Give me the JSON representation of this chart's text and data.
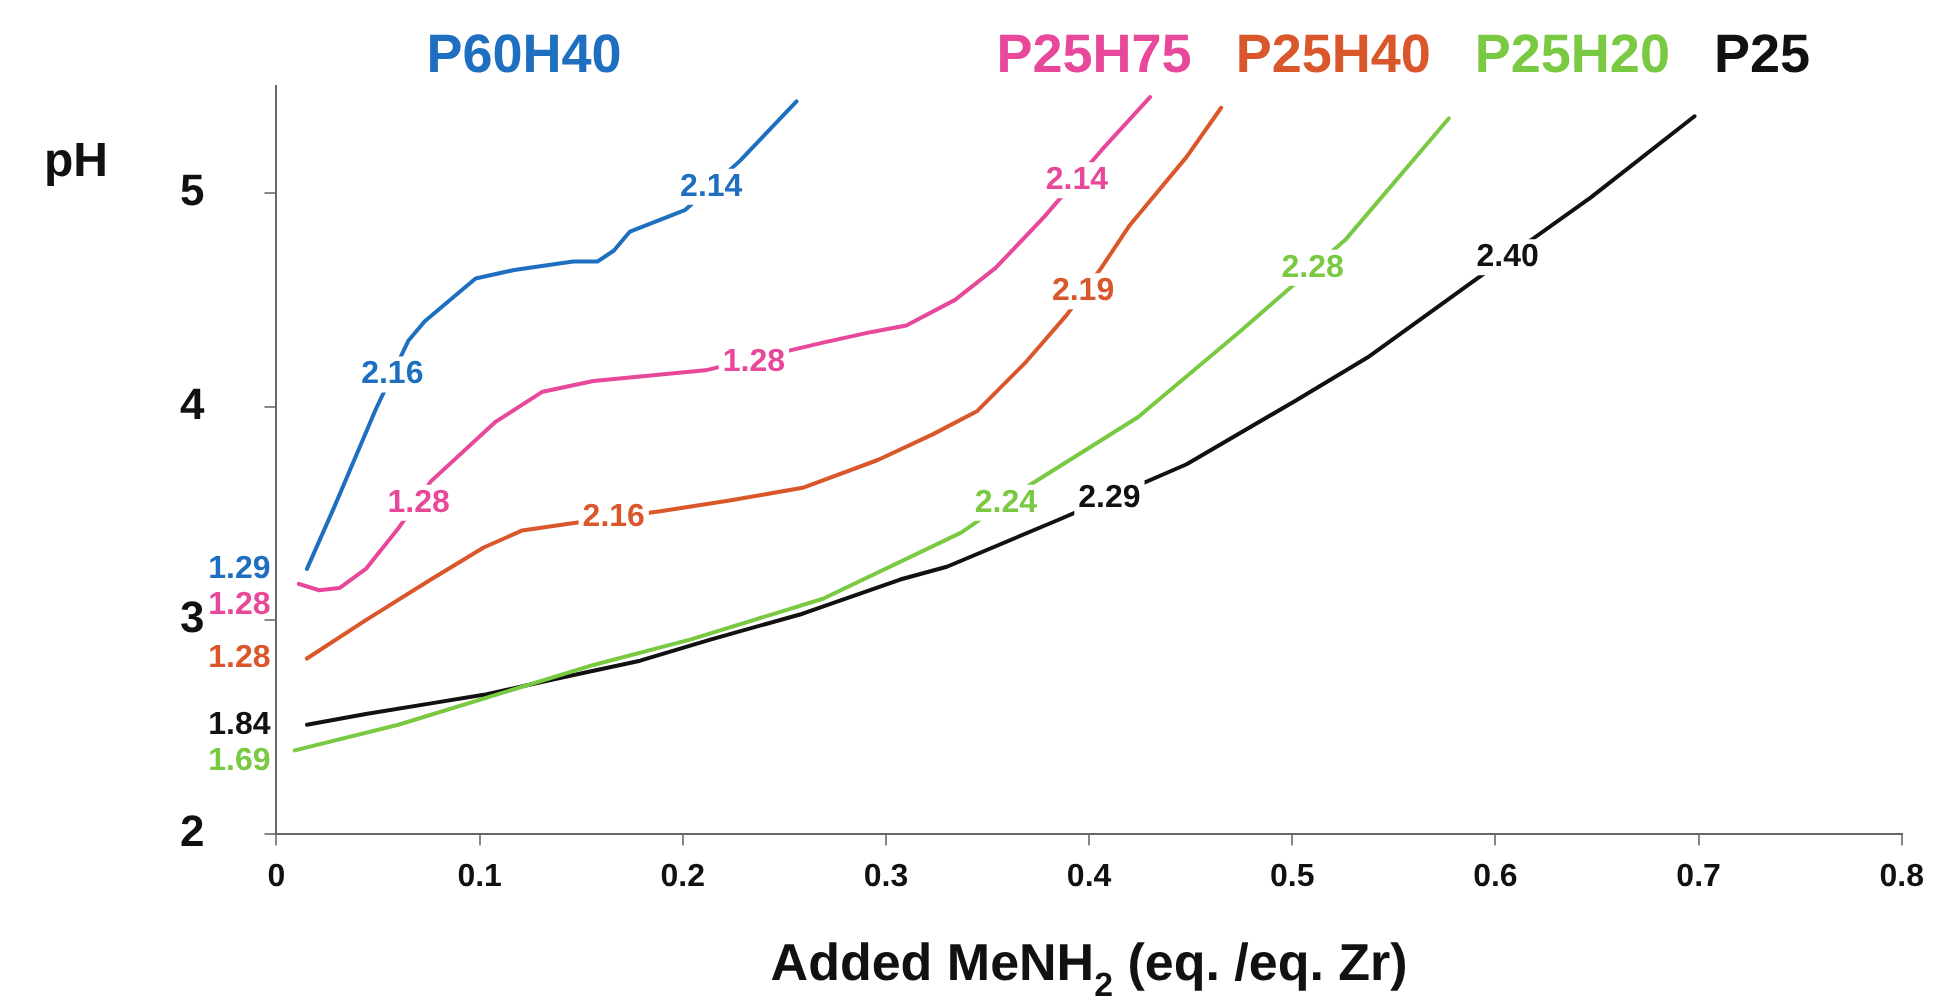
{
  "chart_data": {
    "type": "line",
    "xlabel": "Added MeNH$_{2}$ (eq. /eq. Zr)",
    "ylabel": "pH",
    "xlim": [
      0,
      0.8
    ],
    "ylim": [
      2,
      5.5
    ],
    "xticks": [
      0,
      0.1,
      0.2,
      0.3,
      0.4,
      0.5,
      0.6,
      0.7,
      0.8
    ],
    "yticks": [
      2,
      3,
      4,
      5
    ],
    "grid": false,
    "legend": "top",
    "marker": "none",
    "line_style": "solid",
    "series": [
      {
        "name": "P60H40",
        "color": "#1f6fc0",
        "x": [
          0.015,
          0.028,
          0.049,
          0.065,
          0.073,
          0.098,
          0.117,
          0.146,
          0.158,
          0.166,
          0.174,
          0.201,
          0.228,
          0.237,
          0.256
        ],
        "values": [
          3.24,
          3.52,
          3.99,
          4.31,
          4.4,
          4.6,
          4.64,
          4.68,
          4.68,
          4.73,
          4.82,
          4.92,
          5.15,
          5.24,
          5.43
        ]
      },
      {
        "name": "P25H75",
        "color": "#e8489a",
        "x": [
          0.011,
          0.021,
          0.031,
          0.044,
          0.06,
          0.076,
          0.108,
          0.131,
          0.156,
          0.211,
          0.269,
          0.293,
          0.31,
          0.334,
          0.354,
          0.378,
          0.406,
          0.43
        ],
        "values": [
          3.17,
          3.14,
          3.15,
          3.24,
          3.43,
          3.65,
          3.93,
          4.07,
          4.12,
          4.17,
          4.3,
          4.35,
          4.38,
          4.5,
          4.65,
          4.89,
          5.2,
          5.45
        ]
      },
      {
        "name": "P25H40",
        "color": "#d9572b",
        "x": [
          0.015,
          0.044,
          0.076,
          0.102,
          0.121,
          0.143,
          0.189,
          0.223,
          0.259,
          0.296,
          0.323,
          0.345,
          0.369,
          0.389,
          0.406,
          0.42,
          0.448,
          0.465
        ],
        "values": [
          2.82,
          3.0,
          3.19,
          3.34,
          3.42,
          3.45,
          3.51,
          3.56,
          3.62,
          3.75,
          3.87,
          3.98,
          4.21,
          4.43,
          4.65,
          4.85,
          5.17,
          5.4
        ]
      },
      {
        "name": "P25H20",
        "color": "#7ac943",
        "x": [
          0.009,
          0.06,
          0.108,
          0.156,
          0.204,
          0.269,
          0.337,
          0.372,
          0.424,
          0.474,
          0.526,
          0.577
        ],
        "values": [
          2.39,
          2.51,
          2.65,
          2.79,
          2.91,
          3.1,
          3.41,
          3.64,
          3.95,
          4.35,
          4.78,
          5.35
        ]
      },
      {
        "name": "P25",
        "color": "#111111",
        "x": [
          0.015,
          0.044,
          0.076,
          0.102,
          0.14,
          0.179,
          0.214,
          0.259,
          0.307,
          0.33,
          0.385,
          0.448,
          0.502,
          0.537,
          0.588,
          0.647,
          0.698
        ],
        "values": [
          2.51,
          2.56,
          2.61,
          2.65,
          2.73,
          2.81,
          2.91,
          3.03,
          3.19,
          3.25,
          3.47,
          3.73,
          4.03,
          4.23,
          4.58,
          4.98,
          5.36
        ]
      }
    ],
    "annotations": [
      {
        "text": "1.29",
        "x": 0.015,
        "y": 3.24
      },
      {
        "text": "1.28",
        "x": 0.011,
        "y": 3.17
      },
      {
        "text": "1.28",
        "x": 0.015,
        "y": 2.82
      },
      {
        "text": "1.69",
        "x": 0.009,
        "y": 2.39
      },
      {
        "text": "1.84",
        "x": 0.015,
        "y": 2.51
      },
      {
        "text": "2.16",
        "x": 0.057,
        "y": 4.15
      },
      {
        "text": "2.14",
        "x": 0.214,
        "y": 5.03
      },
      {
        "text": "1.28",
        "x": 0.07,
        "y": 3.55
      },
      {
        "text": "1.28",
        "x": 0.235,
        "y": 4.21
      },
      {
        "text": "2.14",
        "x": 0.394,
        "y": 5.06
      },
      {
        "text": "2.16",
        "x": 0.166,
        "y": 3.48
      },
      {
        "text": "2.19",
        "x": 0.397,
        "y": 4.54
      },
      {
        "text": "2.24",
        "x": 0.359,
        "y": 3.55
      },
      {
        "text": "2.28",
        "x": 0.51,
        "y": 4.65
      },
      {
        "text": "2.29",
        "x": 0.41,
        "y": 3.57
      },
      {
        "text": "2.40",
        "x": 0.606,
        "y": 4.7
      }
    ]
  }
}
